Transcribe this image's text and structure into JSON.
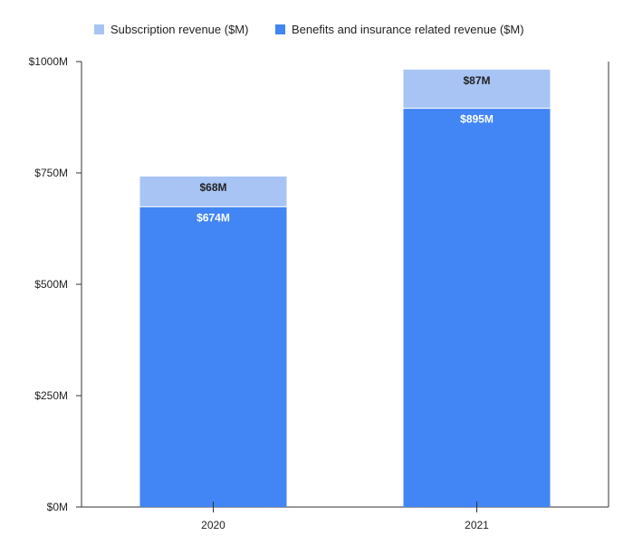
{
  "chart_data": {
    "type": "bar",
    "stacked": true,
    "categories": [
      "2020",
      "2021"
    ],
    "series": [
      {
        "name": "Benefits and insurance related revenue ($M)",
        "values": [
          674,
          895
        ],
        "labels": [
          "$674M",
          "$895M"
        ],
        "color": "#4285f4",
        "label_color": "#ffffff"
      },
      {
        "name": "Subscription revenue ($M)",
        "values": [
          68,
          87
        ],
        "labels": [
          "$68M",
          "$87M"
        ],
        "color": "#a8c4f4",
        "label_color": "#222222"
      }
    ],
    "legend_order": [
      1,
      0
    ],
    "legend_position": "top",
    "ylim": [
      0,
      1000
    ],
    "y_ticks": [
      {
        "value": 0,
        "label": "$0M"
      },
      {
        "value": 250,
        "label": "$250M"
      },
      {
        "value": 500,
        "label": "$500M"
      },
      {
        "value": 750,
        "label": "$750M"
      },
      {
        "value": 1000,
        "label": "$1000M"
      }
    ],
    "grid": false
  }
}
